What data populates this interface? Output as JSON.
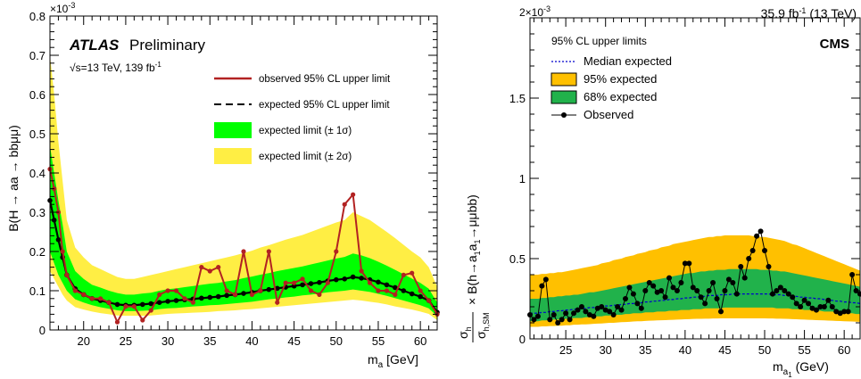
{
  "chart_data": [
    {
      "type": "line",
      "experiment": "ATLAS",
      "status": "Preliminary",
      "energy_lumi": "√s=13 TeV, 139 fb",
      "lumi_exp": "-1",
      "xlabel": "m",
      "xlabel_sub": "a",
      "xlabel_unit": " [GeV]",
      "ylabel": "B(H → aa → bbμμ)",
      "y_exponent": "×10",
      "y_exponent_power": "-3",
      "xlim": [
        16,
        62
      ],
      "ylim": [
        0,
        0.8
      ],
      "xticks": [
        20,
        25,
        30,
        35,
        40,
        45,
        50,
        55,
        60
      ],
      "yticks": [
        0,
        0.1,
        0.2,
        0.3,
        0.4,
        0.5,
        0.6,
        0.7,
        0.8
      ],
      "ytick_labels": [
        "0",
        "0.1",
        "0.2",
        "0.3",
        "0.4",
        "0.5",
        "0.6",
        "0.7",
        "0.8"
      ],
      "legend": [
        {
          "label": "observed 95% CL upper limit",
          "kind": "line",
          "color": "#b22222"
        },
        {
          "label": "expected 95% CL upper limit",
          "kind": "dash",
          "color": "#000000"
        },
        {
          "label": "expected limit (± 1σ)",
          "kind": "box",
          "color": "#00ff00"
        },
        {
          "label": "expected limit (± 2σ)",
          "kind": "box",
          "color": "#ffee44"
        }
      ],
      "colors": {
        "band1": "#00ff00",
        "band2": "#ffee44",
        "observed": "#b22222",
        "expected": "#000000"
      },
      "x": [
        16,
        16.5,
        17,
        17.5,
        18,
        19,
        20,
        21,
        22,
        23,
        24,
        25,
        26,
        27,
        28,
        29,
        30,
        31,
        32,
        33,
        34,
        35,
        36,
        37,
        38,
        39,
        40,
        41,
        42,
        43,
        44,
        45,
        46,
        47,
        48,
        49,
        50,
        51,
        52,
        53,
        54,
        55,
        56,
        57,
        58,
        59,
        60,
        61,
        62
      ],
      "expected": [
        0.33,
        0.28,
        0.23,
        0.185,
        0.14,
        0.105,
        0.09,
        0.08,
        0.075,
        0.07,
        0.065,
        0.063,
        0.063,
        0.065,
        0.067,
        0.07,
        0.073,
        0.075,
        0.077,
        0.079,
        0.081,
        0.083,
        0.085,
        0.088,
        0.09,
        0.093,
        0.096,
        0.1,
        0.103,
        0.106,
        0.109,
        0.112,
        0.115,
        0.118,
        0.121,
        0.125,
        0.128,
        0.13,
        0.135,
        0.132,
        0.128,
        0.122,
        0.115,
        0.108,
        0.1,
        0.092,
        0.085,
        0.075,
        0.045
      ],
      "observed": [
        0.41,
        0.36,
        0.3,
        0.2,
        0.14,
        0.1,
        0.09,
        0.08,
        0.08,
        0.07,
        0.02,
        0.06,
        0.06,
        0.025,
        0.05,
        0.09,
        0.1,
        0.1,
        0.08,
        0.07,
        0.16,
        0.15,
        0.16,
        0.1,
        0.09,
        0.2,
        0.09,
        0.1,
        0.2,
        0.07,
        0.12,
        0.12,
        0.13,
        0.1,
        0.09,
        0.12,
        0.2,
        0.32,
        0.345,
        0.15,
        0.12,
        0.1,
        0.1,
        0.09,
        0.14,
        0.145,
        0.1,
        0.075,
        0.04
      ],
      "band1_low": [
        0.2,
        0.17,
        0.14,
        0.12,
        0.1,
        0.078,
        0.07,
        0.063,
        0.058,
        0.054,
        0.05,
        0.048,
        0.048,
        0.049,
        0.05,
        0.053,
        0.055,
        0.056,
        0.058,
        0.06,
        0.061,
        0.063,
        0.064,
        0.066,
        0.068,
        0.07,
        0.072,
        0.075,
        0.078,
        0.08,
        0.083,
        0.085,
        0.088,
        0.09,
        0.093,
        0.096,
        0.098,
        0.1,
        0.103,
        0.1,
        0.097,
        0.092,
        0.087,
        0.081,
        0.075,
        0.069,
        0.063,
        0.055,
        0.035
      ],
      "band1_high": [
        0.47,
        0.4,
        0.33,
        0.27,
        0.2,
        0.15,
        0.13,
        0.115,
        0.108,
        0.1,
        0.094,
        0.09,
        0.09,
        0.093,
        0.095,
        0.1,
        0.104,
        0.106,
        0.109,
        0.112,
        0.115,
        0.118,
        0.12,
        0.124,
        0.127,
        0.132,
        0.136,
        0.141,
        0.145,
        0.15,
        0.154,
        0.158,
        0.162,
        0.167,
        0.172,
        0.177,
        0.182,
        0.186,
        0.195,
        0.19,
        0.183,
        0.174,
        0.164,
        0.153,
        0.142,
        0.131,
        0.12,
        0.105,
        0.07
      ],
      "band2_low": [
        0.15,
        0.13,
        0.11,
        0.09,
        0.075,
        0.058,
        0.052,
        0.047,
        0.043,
        0.04,
        0.037,
        0.036,
        0.036,
        0.036,
        0.037,
        0.039,
        0.041,
        0.042,
        0.043,
        0.044,
        0.045,
        0.046,
        0.048,
        0.049,
        0.05,
        0.052,
        0.053,
        0.055,
        0.057,
        0.059,
        0.061,
        0.063,
        0.065,
        0.067,
        0.069,
        0.071,
        0.073,
        0.075,
        0.077,
        0.075,
        0.072,
        0.069,
        0.065,
        0.06,
        0.056,
        0.052,
        0.047,
        0.041,
        0.025
      ],
      "band2_high": [
        0.7,
        0.6,
        0.48,
        0.38,
        0.28,
        0.21,
        0.185,
        0.165,
        0.155,
        0.145,
        0.135,
        0.13,
        0.13,
        0.135,
        0.14,
        0.145,
        0.15,
        0.155,
        0.16,
        0.165,
        0.17,
        0.175,
        0.18,
        0.185,
        0.19,
        0.196,
        0.202,
        0.21,
        0.216,
        0.223,
        0.23,
        0.236,
        0.242,
        0.25,
        0.258,
        0.266,
        0.274,
        0.28,
        0.3,
        0.29,
        0.28,
        0.265,
        0.25,
        0.234,
        0.217,
        0.2,
        0.185,
        0.16,
        0.11
      ]
    },
    {
      "type": "line",
      "experiment": "CMS",
      "lumi": "35.9 fb",
      "lumi_exp": "-1",
      "lumi_suffix": " (13 TeV)",
      "legend_title": "95% CL upper limits",
      "xlabel": "m",
      "xlabel_sub": "a",
      "xlabel_subsub": "1",
      "xlabel_unit": " (GeV)",
      "ylabel_frac_num": "σ",
      "ylabel_frac_num_sub": "h",
      "ylabel_frac_den": "σ",
      "ylabel_frac_den_sub": "h,SM",
      "ylabel_rest": "× B(h→a",
      "ylabel_sub1": "1",
      "ylabel_mid": "a",
      "ylabel_sub2": "1",
      "ylabel_end": "→μμbb)",
      "y_exponent": "2×10",
      "y_exponent_power": "-3",
      "xlim": [
        20.5,
        62
      ],
      "ylim": [
        0,
        2.0
      ],
      "xticks": [
        25,
        30,
        35,
        40,
        45,
        50,
        55,
        60
      ],
      "yticks": [
        0,
        0.5,
        1,
        1.5
      ],
      "ytick_labels": [
        "0",
        "0.5",
        "1",
        "1.5"
      ],
      "legend": [
        {
          "label": "Median expected",
          "kind": "dash",
          "color": "#0000cc"
        },
        {
          "label": "95% expected",
          "kind": "box",
          "color": "#ffc000"
        },
        {
          "label": "68% expected",
          "kind": "box",
          "color": "#21b24b"
        },
        {
          "label": "Observed",
          "kind": "marker",
          "color": "#000000"
        }
      ],
      "colors": {
        "band1": "#21b24b",
        "band2": "#ffc000",
        "observed": "#000000",
        "expected": "#0000cc"
      },
      "x": [
        20.5,
        21,
        21.5,
        22,
        22.5,
        23,
        23.5,
        24,
        24.5,
        25,
        25.5,
        26,
        26.5,
        27,
        27.5,
        28,
        28.5,
        29,
        29.5,
        30,
        30.5,
        31,
        31.5,
        32,
        32.5,
        33,
        33.5,
        34,
        34.5,
        35,
        35.5,
        36,
        36.5,
        37,
        37.5,
        38,
        38.5,
        39,
        39.5,
        40,
        40.5,
        41,
        41.5,
        42,
        42.5,
        43,
        43.5,
        44,
        44.5,
        45,
        45.5,
        46,
        46.5,
        47,
        47.5,
        48,
        48.5,
        49,
        49.5,
        50,
        50.5,
        51,
        51.5,
        52,
        52.5,
        53,
        53.5,
        54,
        54.5,
        55,
        55.5,
        56,
        56.5,
        57,
        57.5,
        58,
        58.5,
        59,
        59.5,
        60,
        60.5,
        61,
        61.5,
        62
      ],
      "expected": [
        0.16,
        0.16,
        0.16,
        0.165,
        0.165,
        0.17,
        0.17,
        0.175,
        0.175,
        0.18,
        0.18,
        0.185,
        0.185,
        0.19,
        0.19,
        0.195,
        0.195,
        0.2,
        0.2,
        0.205,
        0.205,
        0.21,
        0.21,
        0.215,
        0.215,
        0.22,
        0.22,
        0.225,
        0.225,
        0.23,
        0.23,
        0.235,
        0.235,
        0.24,
        0.24,
        0.245,
        0.245,
        0.25,
        0.25,
        0.255,
        0.255,
        0.26,
        0.26,
        0.265,
        0.265,
        0.27,
        0.27,
        0.27,
        0.275,
        0.275,
        0.275,
        0.28,
        0.28,
        0.28,
        0.28,
        0.28,
        0.28,
        0.28,
        0.28,
        0.28,
        0.28,
        0.275,
        0.275,
        0.275,
        0.27,
        0.27,
        0.265,
        0.265,
        0.26,
        0.26,
        0.255,
        0.255,
        0.25,
        0.25,
        0.245,
        0.24,
        0.24,
        0.235,
        0.235,
        0.23,
        0.23,
        0.225,
        0.225,
        0.22
      ],
      "observed": [
        0.15,
        0.12,
        0.14,
        0.33,
        0.37,
        0.12,
        0.15,
        0.1,
        0.12,
        0.16,
        0.12,
        0.16,
        0.18,
        0.2,
        0.17,
        0.15,
        0.14,
        0.19,
        0.2,
        0.18,
        0.17,
        0.15,
        0.2,
        0.18,
        0.25,
        0.32,
        0.28,
        0.22,
        0.19,
        0.3,
        0.35,
        0.33,
        0.29,
        0.3,
        0.26,
        0.38,
        0.32,
        0.3,
        0.35,
        0.47,
        0.47,
        0.32,
        0.3,
        0.26,
        0.22,
        0.3,
        0.35,
        0.25,
        0.17,
        0.3,
        0.37,
        0.35,
        0.28,
        0.45,
        0.38,
        0.5,
        0.55,
        0.64,
        0.67,
        0.55,
        0.45,
        0.28,
        0.3,
        0.32,
        0.3,
        0.28,
        0.26,
        0.22,
        0.2,
        0.24,
        0.22,
        0.19,
        0.18,
        0.2,
        0.2,
        0.24,
        0.2,
        0.17,
        0.16,
        0.17,
        0.17,
        0.4,
        0.3,
        0.28
      ],
      "band1_low": [
        0.11,
        0.11,
        0.11,
        0.115,
        0.115,
        0.12,
        0.12,
        0.12,
        0.12,
        0.125,
        0.125,
        0.13,
        0.13,
        0.13,
        0.135,
        0.135,
        0.14,
        0.14,
        0.14,
        0.145,
        0.145,
        0.15,
        0.15,
        0.15,
        0.155,
        0.155,
        0.16,
        0.16,
        0.16,
        0.165,
        0.165,
        0.165,
        0.17,
        0.17,
        0.17,
        0.175,
        0.175,
        0.175,
        0.18,
        0.18,
        0.18,
        0.185,
        0.185,
        0.185,
        0.19,
        0.19,
        0.19,
        0.19,
        0.19,
        0.195,
        0.195,
        0.195,
        0.195,
        0.195,
        0.195,
        0.195,
        0.195,
        0.195,
        0.195,
        0.195,
        0.195,
        0.195,
        0.19,
        0.19,
        0.19,
        0.19,
        0.185,
        0.185,
        0.185,
        0.18,
        0.18,
        0.18,
        0.175,
        0.175,
        0.17,
        0.17,
        0.17,
        0.165,
        0.165,
        0.16,
        0.16,
        0.16,
        0.155,
        0.155
      ],
      "band1_high": [
        0.25,
        0.25,
        0.25,
        0.255,
        0.255,
        0.26,
        0.26,
        0.265,
        0.265,
        0.27,
        0.27,
        0.275,
        0.275,
        0.28,
        0.285,
        0.29,
        0.29,
        0.295,
        0.3,
        0.305,
        0.31,
        0.315,
        0.32,
        0.325,
        0.33,
        0.335,
        0.34,
        0.345,
        0.35,
        0.355,
        0.36,
        0.365,
        0.37,
        0.375,
        0.38,
        0.385,
        0.39,
        0.395,
        0.4,
        0.405,
        0.41,
        0.41,
        0.415,
        0.42,
        0.42,
        0.425,
        0.425,
        0.43,
        0.43,
        0.43,
        0.435,
        0.435,
        0.435,
        0.435,
        0.435,
        0.435,
        0.435,
        0.435,
        0.43,
        0.43,
        0.43,
        0.425,
        0.425,
        0.42,
        0.42,
        0.415,
        0.41,
        0.405,
        0.4,
        0.395,
        0.39,
        0.385,
        0.38,
        0.375,
        0.37,
        0.365,
        0.36,
        0.355,
        0.35,
        0.345,
        0.34,
        0.335,
        0.33,
        0.325
      ],
      "band2_low": [
        0.075,
        0.075,
        0.075,
        0.078,
        0.078,
        0.08,
        0.08,
        0.082,
        0.082,
        0.085,
        0.085,
        0.088,
        0.088,
        0.09,
        0.09,
        0.092,
        0.094,
        0.095,
        0.096,
        0.098,
        0.1,
        0.1,
        0.102,
        0.104,
        0.105,
        0.106,
        0.108,
        0.11,
        0.11,
        0.112,
        0.113,
        0.114,
        0.115,
        0.116,
        0.117,
        0.118,
        0.119,
        0.12,
        0.121,
        0.122,
        0.123,
        0.124,
        0.125,
        0.125,
        0.126,
        0.126,
        0.127,
        0.127,
        0.128,
        0.128,
        0.128,
        0.128,
        0.128,
        0.128,
        0.128,
        0.128,
        0.128,
        0.128,
        0.128,
        0.128,
        0.127,
        0.127,
        0.126,
        0.126,
        0.125,
        0.124,
        0.123,
        0.122,
        0.121,
        0.12,
        0.119,
        0.118,
        0.117,
        0.116,
        0.115,
        0.114,
        0.113,
        0.112,
        0.111,
        0.11,
        0.109,
        0.108,
        0.107,
        0.106
      ],
      "band2_high": [
        0.4,
        0.4,
        0.4,
        0.405,
        0.405,
        0.41,
        0.41,
        0.415,
        0.415,
        0.42,
        0.425,
        0.43,
        0.435,
        0.44,
        0.445,
        0.45,
        0.455,
        0.46,
        0.47,
        0.475,
        0.48,
        0.49,
        0.495,
        0.5,
        0.51,
        0.515,
        0.52,
        0.53,
        0.535,
        0.54,
        0.55,
        0.555,
        0.56,
        0.57,
        0.575,
        0.58,
        0.59,
        0.595,
        0.6,
        0.605,
        0.61,
        0.615,
        0.62,
        0.625,
        0.63,
        0.635,
        0.635,
        0.64,
        0.64,
        0.645,
        0.645,
        0.645,
        0.645,
        0.645,
        0.645,
        0.645,
        0.64,
        0.64,
        0.635,
        0.635,
        0.63,
        0.625,
        0.62,
        0.615,
        0.61,
        0.6,
        0.59,
        0.585,
        0.575,
        0.565,
        0.555,
        0.545,
        0.535,
        0.525,
        0.515,
        0.505,
        0.495,
        0.485,
        0.475,
        0.465,
        0.455,
        0.445,
        0.435,
        0.425
      ]
    }
  ]
}
